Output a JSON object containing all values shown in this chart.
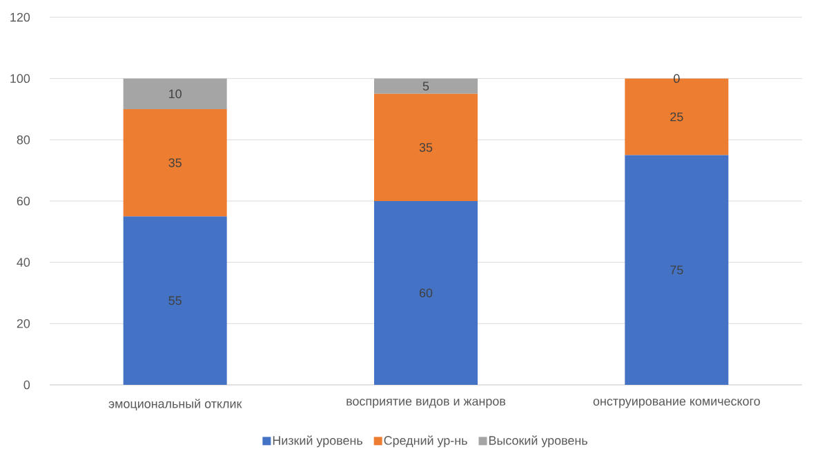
{
  "chart_data": {
    "type": "bar",
    "stacked": true,
    "categories": [
      "эмоциональный отклик",
      "восприятие видов и жанров",
      "онструирование комического"
    ],
    "series": [
      {
        "name": "Низкий уровень",
        "color": "#4472c4",
        "values": [
          55,
          60,
          75
        ]
      },
      {
        "name": "Средний ур-нь",
        "color": "#ed7d31",
        "values": [
          35,
          35,
          25
        ]
      },
      {
        "name": "Высокий уровень",
        "color": "#a5a5a5",
        "values": [
          10,
          5,
          0
        ]
      }
    ],
    "ylim": [
      0,
      120
    ],
    "yticks": [
      0,
      20,
      40,
      60,
      80,
      100,
      120
    ],
    "grid": "y",
    "legend": "bottom",
    "data_labels": true
  }
}
